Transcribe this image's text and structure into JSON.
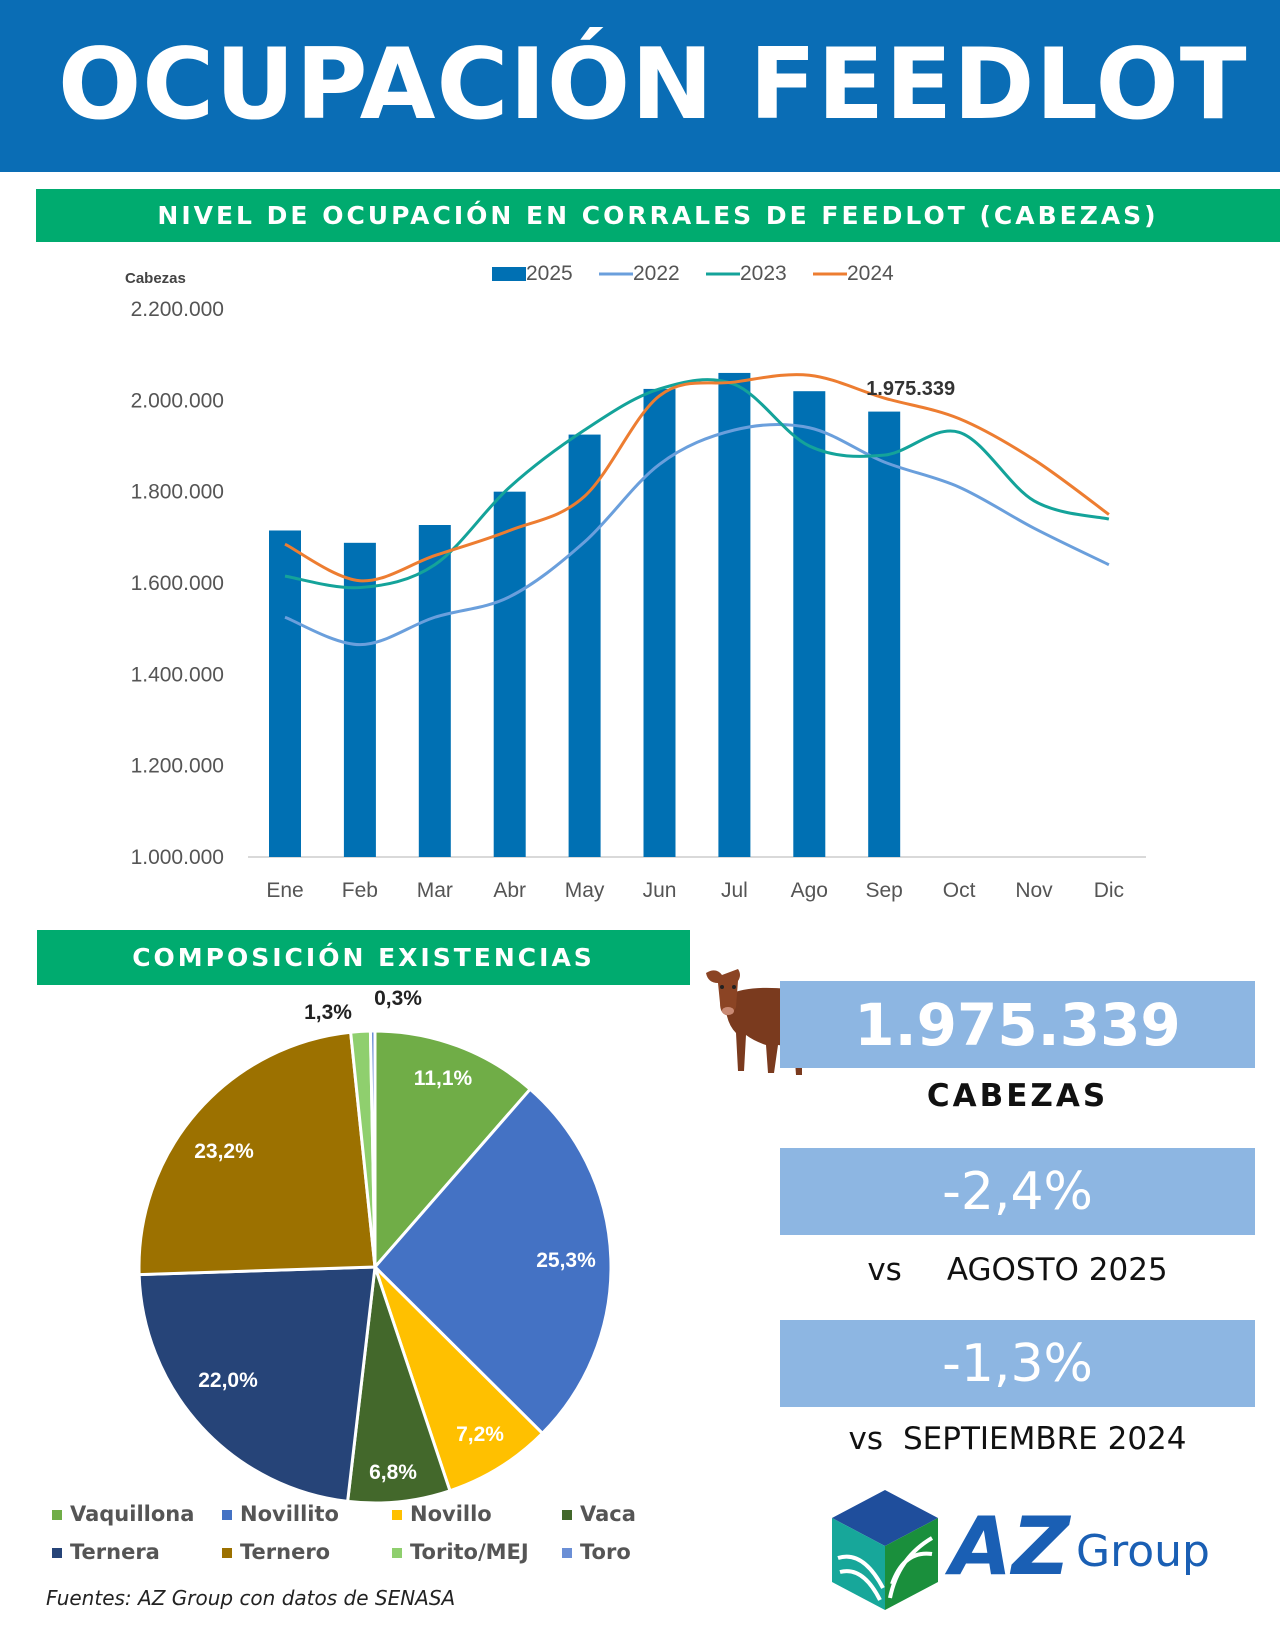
{
  "header": {
    "title": "OCUPACIÓN FEEDLOT"
  },
  "chart_section": {
    "title": "NIVEL DE OCUPACIÓN EN CORRALES DE FEEDLOT (CABEZAS)"
  },
  "pie_section": {
    "title": "COMPOSICIÓN EXISTENCIAS"
  },
  "kpis": {
    "total_value": "1.975.339",
    "total_label": "CABEZAS",
    "mom_value": "-2,4%",
    "mom_vs": "vs",
    "mom_label": "AGOSTO 2025",
    "yoy_value": "-1,3%",
    "yoy_vs": "vs",
    "yoy_label": "SEPTIEMBRE 2024"
  },
  "footer": {
    "source": "Fuentes: AZ Group con datos de SENASA"
  },
  "logo": {
    "text_main": "AZ",
    "text_sub": "Group"
  },
  "chart_data": [
    {
      "type": "bar+line",
      "ylabel": "Cabezas",
      "ylim": [
        1000000,
        2200000
      ],
      "yticks": [
        "1.000.000",
        "1.200.000",
        "1.400.000",
        "1.600.000",
        "1.800.000",
        "2.000.000",
        "2.200.000"
      ],
      "categories": [
        "Ene",
        "Feb",
        "Mar",
        "Abr",
        "May",
        "Jun",
        "Jul",
        "Ago",
        "Sep",
        "Oct",
        "Nov",
        "Dic"
      ],
      "legend_position": "top",
      "annotation": "1.975.339",
      "series": [
        {
          "name": "2025",
          "kind": "bar",
          "color": "#0070b3",
          "values": [
            1715000,
            1688000,
            1727000,
            1800000,
            1925000,
            2025000,
            2060000,
            2020000,
            1975339,
            null,
            null,
            null
          ]
        },
        {
          "name": "2022",
          "kind": "line",
          "color": "#6a9fdc",
          "values": [
            1525000,
            1465000,
            1525000,
            1570000,
            1690000,
            1860000,
            1935000,
            1940000,
            1865000,
            1810000,
            1720000,
            1640000
          ]
        },
        {
          "name": "2023",
          "kind": "line",
          "color": "#14a39a",
          "values": [
            1615000,
            1590000,
            1640000,
            1810000,
            1935000,
            2025000,
            2035000,
            1900000,
            1880000,
            1930000,
            1780000,
            1740000
          ]
        },
        {
          "name": "2024",
          "kind": "line",
          "color": "#ed7d31",
          "values": [
            1685000,
            1605000,
            1660000,
            1715000,
            1790000,
            2010000,
            2040000,
            2055000,
            2005000,
            1960000,
            1870000,
            1750000
          ]
        }
      ]
    },
    {
      "type": "pie",
      "slices": [
        {
          "name": "Vaquillona",
          "value": 11.1,
          "label": "11,1%",
          "color": "#70ad47"
        },
        {
          "name": "Novillito",
          "value": 25.3,
          "label": "25,3%",
          "color": "#4472c4"
        },
        {
          "name": "Novillo",
          "value": 7.2,
          "label": "7,2%",
          "color": "#ffc000"
        },
        {
          "name": "Vaca",
          "value": 6.8,
          "label": "6,8%",
          "color": "#43682b"
        },
        {
          "name": "Ternera",
          "value": 22.0,
          "label": "22,0%",
          "color": "#264478"
        },
        {
          "name": "Ternero",
          "value": 23.2,
          "label": "23,2%",
          "color": "#9c7100"
        },
        {
          "name": "Torito/MEJ",
          "value": 1.3,
          "label": "1,3%",
          "color": "#8fcf6e"
        },
        {
          "name": "Toro",
          "value": 0.3,
          "label": "0,3%",
          "color": "#6b8fd6"
        }
      ],
      "legend_order": [
        "Vaquillona",
        "Novillito",
        "Novillo",
        "Vaca",
        "Ternera",
        "Ternero",
        "Torito/MEJ",
        "Toro"
      ]
    }
  ]
}
